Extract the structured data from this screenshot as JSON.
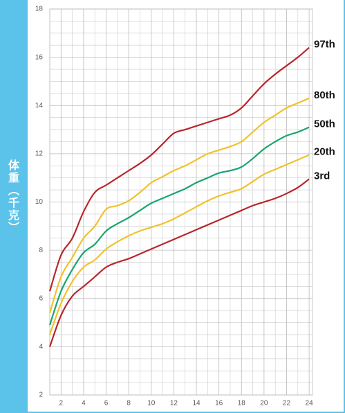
{
  "chart_data": {
    "type": "line",
    "ylabel": "体重（千克）",
    "x": [
      1,
      2,
      3,
      4,
      5,
      6,
      7,
      8,
      9,
      10,
      11,
      12,
      13,
      14,
      15,
      16,
      17,
      18,
      19,
      20,
      21,
      22,
      23,
      24
    ],
    "xlim": [
      1,
      24.3
    ],
    "xticks": [
      2,
      4,
      6,
      8,
      10,
      12,
      14,
      16,
      18,
      20,
      22,
      24
    ],
    "ylim": [
      2,
      18
    ],
    "yticks": [
      2,
      4,
      6,
      8,
      10,
      12,
      14,
      16,
      18
    ],
    "grid": true,
    "series": [
      {
        "name": "97th",
        "color": "#b8262c",
        "values": [
          6.3,
          7.8,
          8.5,
          9.6,
          10.4,
          10.7,
          11.0,
          11.3,
          11.6,
          11.95,
          12.4,
          12.85,
          13.0,
          13.15,
          13.3,
          13.45,
          13.6,
          13.9,
          14.4,
          14.9,
          15.3,
          15.65,
          16.0,
          16.4
        ]
      },
      {
        "name": "80th",
        "color": "#f0c22c",
        "values": [
          5.4,
          6.9,
          7.7,
          8.5,
          9.0,
          9.7,
          9.85,
          10.05,
          10.4,
          10.8,
          11.05,
          11.3,
          11.5,
          11.75,
          12.0,
          12.15,
          12.3,
          12.5,
          12.9,
          13.3,
          13.6,
          13.9,
          14.1,
          14.3
        ]
      },
      {
        "name": "50th",
        "color": "#1aa56e",
        "values": [
          4.9,
          6.3,
          7.2,
          7.9,
          8.25,
          8.8,
          9.1,
          9.35,
          9.65,
          9.95,
          10.15,
          10.35,
          10.55,
          10.8,
          11.0,
          11.2,
          11.3,
          11.45,
          11.8,
          12.2,
          12.5,
          12.75,
          12.9,
          13.1
        ]
      },
      {
        "name": "20th",
        "color": "#f0c22c",
        "values": [
          4.5,
          5.8,
          6.7,
          7.3,
          7.6,
          8.05,
          8.35,
          8.6,
          8.8,
          8.95,
          9.1,
          9.3,
          9.55,
          9.8,
          10.05,
          10.25,
          10.4,
          10.55,
          10.85,
          11.15,
          11.35,
          11.55,
          11.75,
          11.95
        ]
      },
      {
        "name": "3rd",
        "color": "#b8262c",
        "values": [
          4.0,
          5.3,
          6.1,
          6.5,
          6.9,
          7.3,
          7.5,
          7.65,
          7.85,
          8.05,
          8.25,
          8.45,
          8.65,
          8.85,
          9.05,
          9.25,
          9.45,
          9.65,
          9.85,
          10.0,
          10.15,
          10.35,
          10.6,
          10.95
        ]
      }
    ]
  }
}
